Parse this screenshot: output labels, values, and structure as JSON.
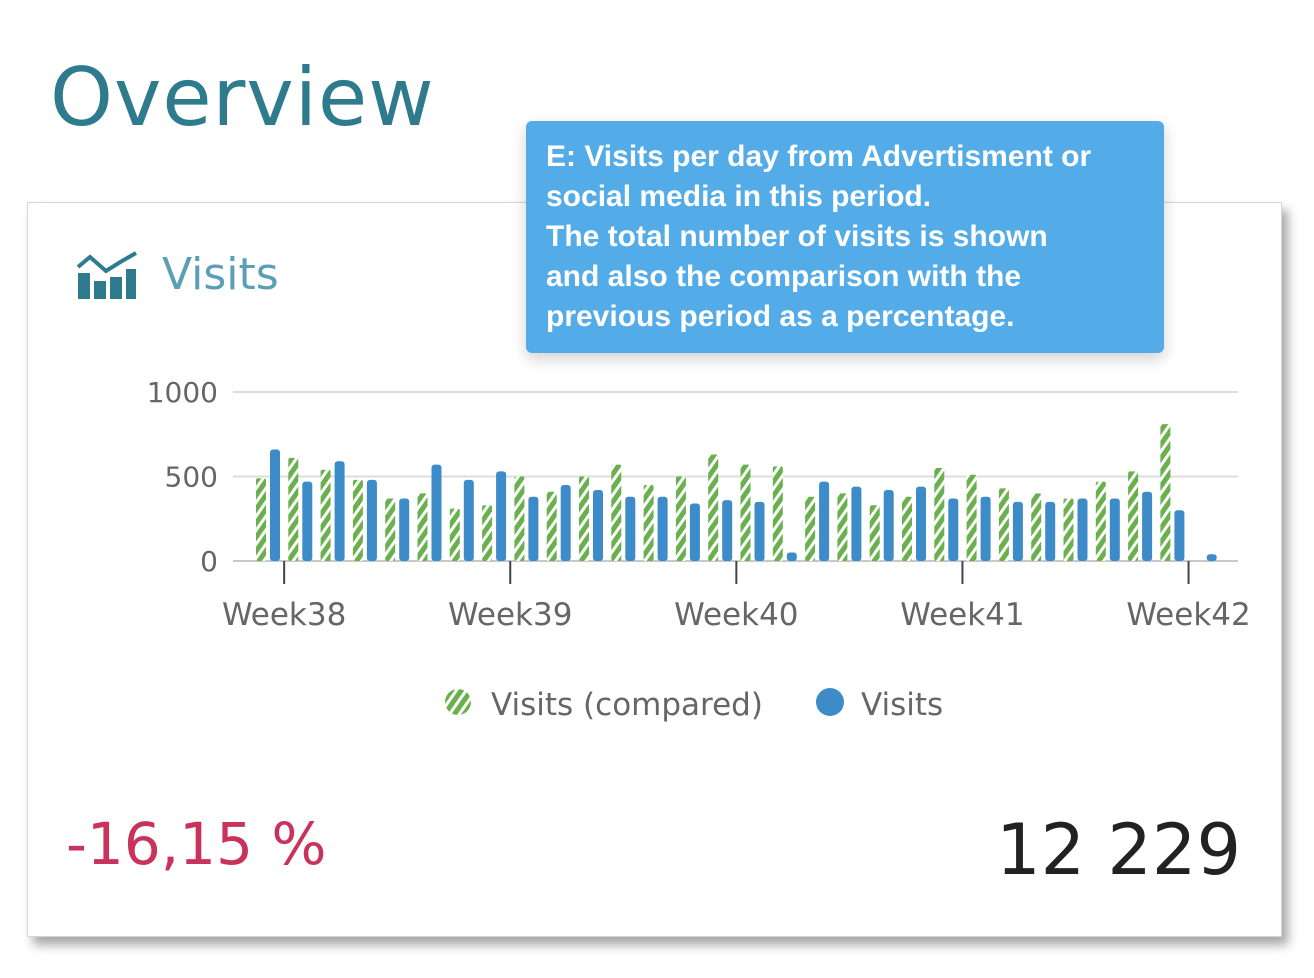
{
  "page": {
    "title": "Overview"
  },
  "card": {
    "title": "Visits",
    "icon": "bar-line-chart-icon",
    "change": "-16,15 %",
    "total": "12 229"
  },
  "tooltip": {
    "lines": [
      "E: Visits per day from Advertisment or",
      "social media in this period.",
      "The total number of visits is shown",
      "and also the comparison with the",
      "previous period as a percentage."
    ]
  },
  "colors": {
    "compared": "#6ab04c",
    "visits": "#3d8bc9",
    "change": "#c8325b",
    "tooltip": "#53ace8"
  },
  "chart_data": {
    "type": "bar",
    "y_ticks": [
      "1000",
      "500",
      "0"
    ],
    "ylim": [
      0,
      1000
    ],
    "x_labels": [
      "Week38",
      "Week39",
      "Week40",
      "Week41",
      "Week42"
    ],
    "x_label_days": [
      0.5,
      7.5,
      14.5,
      21.5,
      28.5
    ],
    "grid": true,
    "legend_position": "bottom",
    "series": [
      {
        "name": "Visits (compared)",
        "pattern": "striped",
        "values": [
          490,
          610,
          540,
          480,
          370,
          400,
          310,
          330,
          500,
          410,
          500,
          570,
          450,
          500,
          630,
          570,
          560,
          380,
          400,
          330,
          380,
          550,
          510,
          430,
          400,
          370,
          470,
          530,
          810
        ]
      },
      {
        "name": "Visits",
        "values": [
          660,
          470,
          590,
          480,
          370,
          570,
          480,
          530,
          380,
          450,
          420,
          380,
          380,
          340,
          360,
          350,
          50,
          470,
          440,
          420,
          440,
          370,
          380,
          350,
          350,
          370,
          370,
          410,
          300,
          40
        ]
      }
    ]
  }
}
